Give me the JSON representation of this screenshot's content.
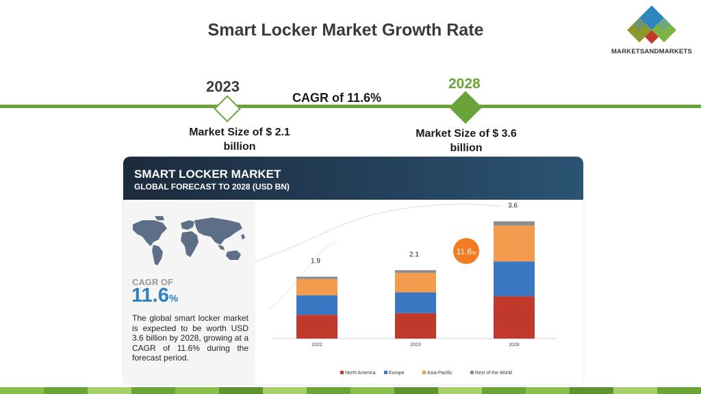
{
  "header": {
    "title": "Smart Locker Market Growth Rate"
  },
  "logo": {
    "text": "MARKETSANDMARKETS",
    "colors": [
      "#2e86c1",
      "#c0392b",
      "#7cb342",
      "#8a9a2a"
    ]
  },
  "timeline": {
    "start_year": "2023",
    "end_year": "2028",
    "cagr_label": "CAGR of 11.6%",
    "market_size_start": "Market Size of $ 2.1 billion",
    "market_size_end": "Market Size of $ 3.6 billion",
    "accent": "#6aa33a"
  },
  "card": {
    "banner_title": "SMART LOCKER MARKET",
    "banner_subtitle": "GLOBAL FORECAST TO 2028 (USD BN)",
    "cagr_of": "CAGR OF",
    "cagr_value": "11.6",
    "cagr_unit": "%",
    "description": "The global smart locker market is expected to be worth USD 3.6 billion by 2028, growing at a CAGR of 11.6% during the forecast period.",
    "badge": {
      "value": "11.6",
      "unit": "%",
      "color": "#f37b22"
    }
  },
  "chart_data": {
    "type": "bar",
    "stacked": true,
    "title": "SMART LOCKER MARKET",
    "subtitle": "GLOBAL FORECAST TO 2028 (USD BN)",
    "categories": [
      "2022",
      "2023",
      "2028"
    ],
    "totals": [
      "1.9",
      "2.1",
      "3.6"
    ],
    "series": [
      {
        "name": "North America",
        "color": "#c0392b",
        "values": [
          0.73,
          0.78,
          1.3
        ]
      },
      {
        "name": "Europe",
        "color": "#3a78c3",
        "values": [
          0.6,
          0.64,
          1.07
        ]
      },
      {
        "name": "Asia-Pacific",
        "color": "#f39c4e",
        "values": [
          0.5,
          0.6,
          1.1
        ]
      },
      {
        "name": "Rest of the World",
        "color": "#8c8c8c",
        "values": [
          0.07,
          0.08,
          0.13
        ]
      }
    ],
    "ylim": [
      0,
      4.2
    ],
    "grid": false,
    "legend_position": "bottom"
  }
}
